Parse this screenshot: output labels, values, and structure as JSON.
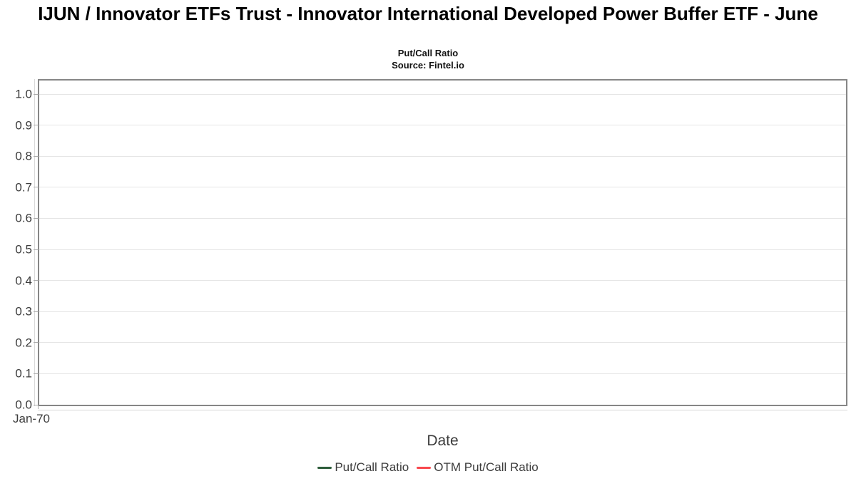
{
  "header": {
    "title": "IJUN / Innovator ETFs Trust - Innovator International Developed Power Buffer ETF - June",
    "subtitle": "Put/Call Ratio",
    "source": "Source: Fintel.io"
  },
  "chart_data": {
    "type": "line",
    "title": "IJUN / Innovator ETFs Trust - Innovator International Developed Power Buffer ETF - June",
    "subtitle": "Put/Call Ratio",
    "source": "Source: Fintel.io",
    "xlabel": "Date",
    "ylabel": "",
    "x_ticks": [
      "Jan-70"
    ],
    "y_ticks": [
      "0.0",
      "0.1",
      "0.2",
      "0.3",
      "0.4",
      "0.5",
      "0.6",
      "0.7",
      "0.8",
      "0.9",
      "1.0"
    ],
    "ylim": [
      0.0,
      1.05
    ],
    "grid": true,
    "legend_position": "bottom-center",
    "series": [
      {
        "name": "Put/Call Ratio",
        "color": "#2d5d3b",
        "x": [],
        "values": []
      },
      {
        "name": "OTM Put/Call Ratio",
        "color": "#f8484e",
        "x": [],
        "values": []
      }
    ]
  },
  "colors": {
    "grid": "#e5e5e5",
    "axis_border": "#868686",
    "tick": "#aaaaaa",
    "tick_line": "#d9d9d9",
    "text": "#3c3c3c",
    "title": "#000000"
  }
}
